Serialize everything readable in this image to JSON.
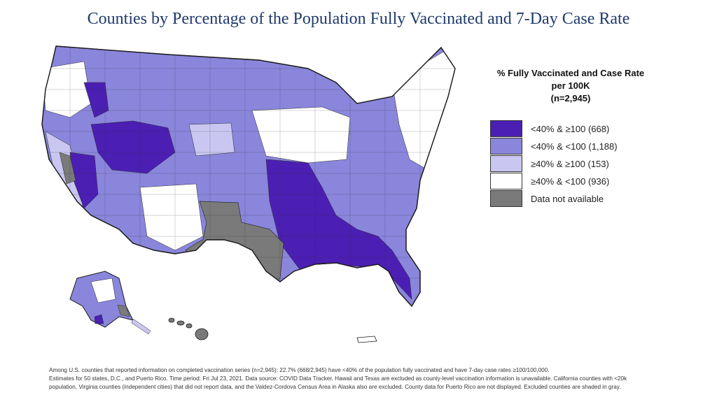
{
  "title": "Counties by Percentage of the Population Fully Vaccinated and 7-Day Case Rate",
  "colors": {
    "dark_purple": "#4b1fb3",
    "medium_purple": "#8a86dc",
    "light_purple": "#c9c6f1",
    "white": "#ffffff",
    "gray": "#7a7a7a",
    "county_border": "#2b2b2b"
  },
  "legend": {
    "title_line1": "% Fully Vaccinated and Case Rate per 100K",
    "title_line2": "(n=2,945)",
    "items": [
      {
        "label": "<40% & ≥100 (668)",
        "color": "#4b1fb3"
      },
      {
        "label": "<40% & <100 (1,188)",
        "color": "#8a86dc"
      },
      {
        "label": "≥40% & ≥100 (153)",
        "color": "#c9c6f1"
      },
      {
        "label": "≥40% & <100 (936)",
        "color": "#ffffff"
      },
      {
        "label": "Data not available",
        "color": "#7a7a7a"
      }
    ]
  },
  "footnote": {
    "line1": "Among U.S. counties that reported information on completed vaccination series (n=2,945): 22.7% (668/2,945) have <40% of the population fully vaccinated and have 7-day case rates ≥100/100,000.",
    "line2": "Estimates for 50 states, D.C., and Puerto Rico. Time period: Fri Jul 23, 2021. Data source: COVID Data Tracker. Hawaii and Texas are excluded as county-level vaccination information is unavailable. California counties with <20k",
    "line3": "population, Virginia counties (independent cities) that did not report data, and the Valdez-Cordova Census Area in Alaska also are excluded. County data for Puerto Rico are not displayed. Excluded counties are shaded in gray."
  }
}
